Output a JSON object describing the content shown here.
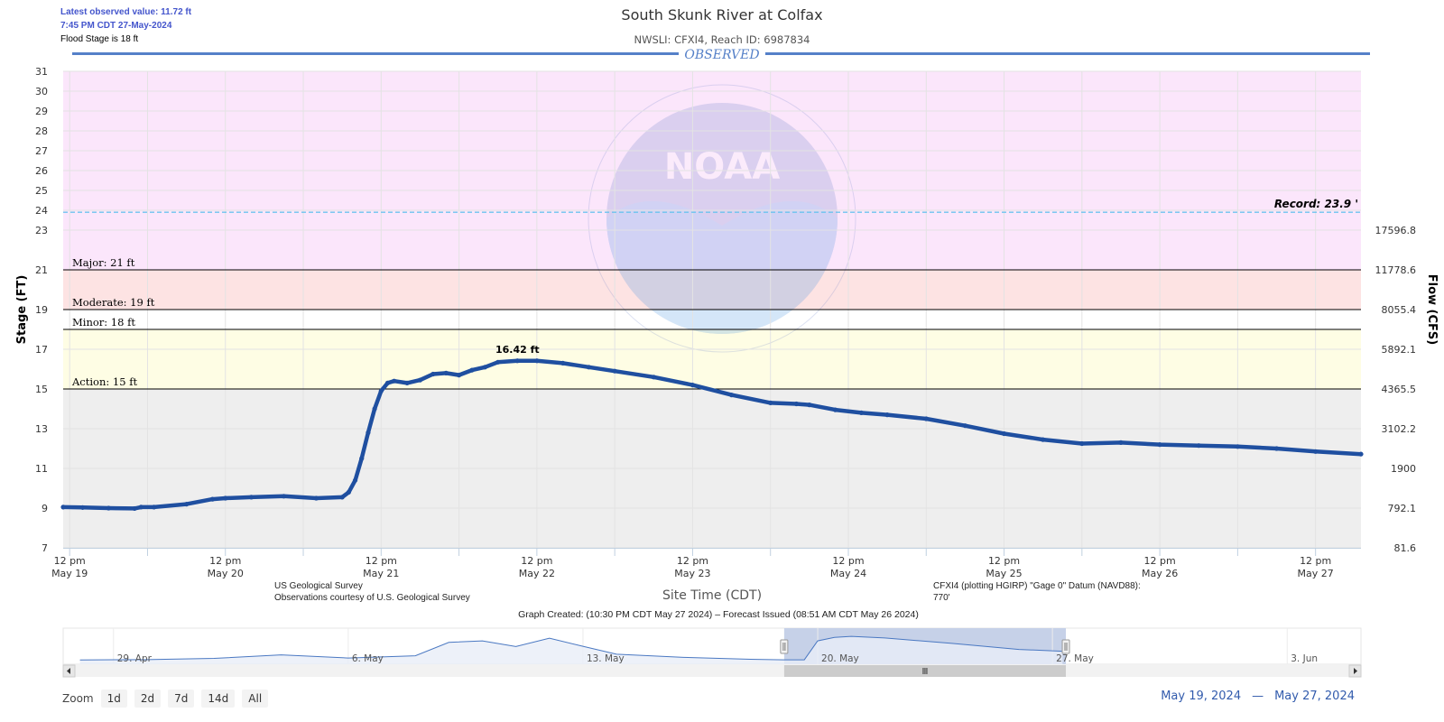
{
  "info": {
    "latest": "Latest observed value: 11.72 ft",
    "time": "7:45 PM CDT 27-May-2024",
    "flood_stage": "Flood Stage is 18 ft"
  },
  "zoom": {
    "label": "Zoom",
    "buttons": [
      "1d",
      "2d",
      "7d",
      "14d",
      "All"
    ]
  },
  "range": {
    "from": "May 19, 2024",
    "sep": "—",
    "to": "May 27, 2024"
  },
  "colors": {
    "series": "#1f4fa0",
    "major_band": "#fbe6fb",
    "moderate_band": "#fde3e3",
    "minor_band": "#fefde4",
    "normal_band": "#eeeeee",
    "observed_rule": "#5580c8",
    "record_line": "#6cc4ee",
    "navigator_fill": "#c6d1e8"
  },
  "chart_data": {
    "type": "line",
    "title": "South Skunk River at Colfax",
    "subtitle": "NWSLI: CFXI4, Reach ID: 6987834",
    "section_label": "OBSERVED",
    "xlabel": "Site Time (CDT)",
    "ylabel": "Stage (FT)",
    "y2label": "Flow (CFS)",
    "credits": [
      "US Geological Survey",
      "Observations courtesy of U.S. Geological Survey"
    ],
    "datum_note": [
      "CFXI4 (plotting HGIRP) \"Gage 0\" Datum (NAVD88):",
      "770'"
    ],
    "created_note": "Graph Created: (10:30 PM CDT May 27 2024) – Forecast Issued (08:51 AM CDT May 26 2024)",
    "ylim": [
      7,
      31
    ],
    "y_ticks": [
      7,
      9,
      11,
      13,
      15,
      17,
      19,
      21,
      23,
      24,
      25,
      26,
      27,
      28,
      29,
      30,
      31
    ],
    "y2_ticks": [
      {
        "stage": 7,
        "label": "81.6"
      },
      {
        "stage": 9,
        "label": "792.1"
      },
      {
        "stage": 11,
        "label": "1900"
      },
      {
        "stage": 13,
        "label": "3102.2"
      },
      {
        "stage": 15,
        "label": "4365.5"
      },
      {
        "stage": 17,
        "label": "5892.1"
      },
      {
        "stage": 19,
        "label": "8055.4"
      },
      {
        "stage": 21,
        "label": "11778.6"
      },
      {
        "stage": 23,
        "label": "17596.8"
      }
    ],
    "xlim_hours": [
      -1,
      199
    ],
    "x_ticks": [
      {
        "hour": 0,
        "line1": "12 pm",
        "line2": "May 19"
      },
      {
        "hour": 24,
        "line1": "12 pm",
        "line2": "May 20"
      },
      {
        "hour": 48,
        "line1": "12 pm",
        "line2": "May 21"
      },
      {
        "hour": 72,
        "line1": "12 pm",
        "line2": "May 22"
      },
      {
        "hour": 96,
        "line1": "12 pm",
        "line2": "May 23"
      },
      {
        "hour": 120,
        "line1": "12 pm",
        "line2": "May 24"
      },
      {
        "hour": 144,
        "line1": "12 pm",
        "line2": "May 25"
      },
      {
        "hour": 168,
        "line1": "12 pm",
        "line2": "May 26"
      },
      {
        "hour": 192,
        "line1": "12 pm",
        "line2": "May 27"
      }
    ],
    "thresholds": [
      {
        "name": "Major",
        "label": "Major: 21 ft",
        "value": 21
      },
      {
        "name": "Moderate",
        "label": "Moderate: 19 ft",
        "value": 19
      },
      {
        "name": "Minor",
        "label": "Minor: 18 ft",
        "value": 18
      },
      {
        "name": "Action",
        "label": "Action: 15 ft",
        "value": 15
      }
    ],
    "record": {
      "label": "Record: 23.9 '",
      "value": 23.9
    },
    "peak": {
      "label": "16.42 ft",
      "hour": 69,
      "value": 16.42
    },
    "series": [
      {
        "x_hours": [
          -1,
          2,
          6,
          10,
          11,
          13,
          18,
          22,
          24,
          28,
          33,
          38,
          42,
          43,
          44,
          45,
          46,
          47,
          48,
          49,
          50,
          52,
          54,
          56,
          58,
          60,
          62,
          64,
          66,
          69,
          72,
          76,
          80,
          84,
          90,
          96,
          102,
          108,
          112,
          114,
          118,
          122,
          126,
          132,
          138,
          144,
          150,
          156,
          162,
          168,
          174,
          180,
          186,
          192,
          199
        ],
        "y": [
          9.05,
          9.03,
          9.0,
          8.98,
          9.05,
          9.05,
          9.2,
          9.45,
          9.5,
          9.55,
          9.6,
          9.5,
          9.55,
          9.8,
          10.4,
          11.5,
          12.8,
          14.0,
          14.9,
          15.3,
          15.4,
          15.3,
          15.45,
          15.75,
          15.8,
          15.7,
          15.95,
          16.1,
          16.35,
          16.42,
          16.42,
          16.3,
          16.1,
          15.9,
          15.6,
          15.2,
          14.7,
          14.3,
          14.25,
          14.2,
          13.95,
          13.8,
          13.7,
          13.5,
          13.15,
          12.75,
          12.45,
          12.25,
          12.3,
          12.2,
          12.15,
          12.1,
          12.0,
          11.85,
          11.72
        ]
      }
    ],
    "navigator": {
      "labels": [
        "29. Apr",
        "6. May",
        "13. May",
        "20. May",
        "27. May",
        "3. Jun"
      ],
      "label_days": [
        0,
        7,
        14,
        21,
        28,
        35
      ],
      "xlim_days": [
        -1.5,
        37.2
      ],
      "selection_days": [
        20,
        28.4
      ],
      "x_days": [
        -1,
        1,
        3,
        5,
        7,
        9,
        10,
        11,
        12,
        13,
        14,
        15,
        17,
        19,
        20,
        20.6,
        21,
        21.5,
        22,
        23,
        25,
        27,
        28.3
      ],
      "y": [
        9.0,
        9.1,
        9.5,
        10.6,
        9.6,
        10.3,
        14.5,
        15.0,
        13.2,
        15.8,
        13.3,
        10.8,
        9.8,
        9.2,
        9.05,
        9.05,
        15.0,
        16.1,
        16.4,
        15.9,
        14.2,
        12.3,
        11.72
      ]
    }
  }
}
